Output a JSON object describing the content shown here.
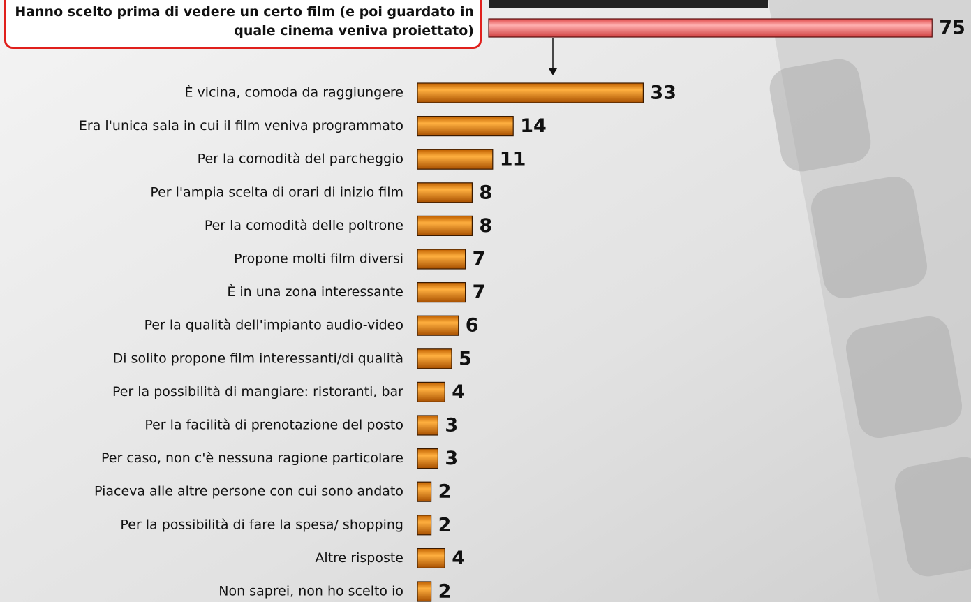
{
  "chart_data": {
    "type": "bar",
    "highlight": {
      "label": "Hanno scelto prima di vedere un certo film (e poi guardato in quale cinema veniva proiettato)",
      "value": 75,
      "color": "#ff7b7b"
    },
    "categories": [
      "È vicina, comoda da raggiungere",
      "Era l'unica sala in cui il film veniva programmato",
      "Per la comodità del parcheggio",
      "Per l'ampia scelta di orari di inizio film",
      "Per la comodità delle poltrone",
      "Propone molti film diversi",
      "È in una zona interessante",
      "Per la qualità dell'impianto audio-video",
      "Di solito propone film interessanti/di qualità",
      "Per la possibilità di mangiare: ristoranti, bar",
      "Per la facilità di prenotazione del posto",
      "Per caso, non c'è nessuna ragione particolare",
      "Piaceva alle altre persone con cui sono andato",
      "Per la possibilità di fare la spesa/ shopping",
      "Altre risposte",
      "Non saprei, non ho scelto io"
    ],
    "values": [
      33,
      14,
      11,
      8,
      8,
      7,
      7,
      6,
      5,
      4,
      3,
      3,
      2,
      2,
      4,
      2
    ],
    "color": "#ff9900"
  }
}
